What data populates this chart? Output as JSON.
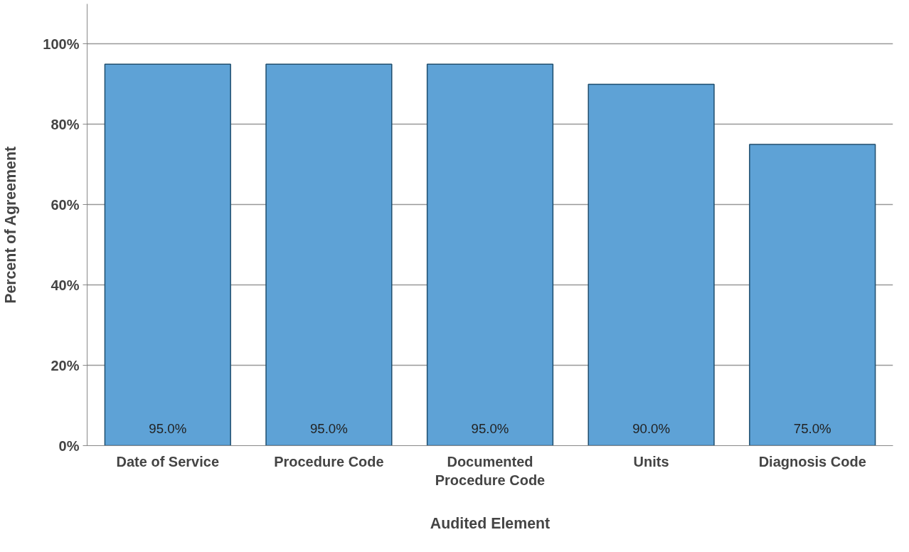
{
  "chart_data": {
    "type": "bar",
    "xlabel": "Audited Element",
    "ylabel": "Percent of Agreement",
    "categories": [
      "Date of Service",
      "Procedure Code",
      "Documented Procedure Code",
      "Units",
      "Diagnosis Code"
    ],
    "values": [
      95,
      95,
      95,
      90,
      75
    ],
    "value_labels": [
      "95.0%",
      "95.0%",
      "95.0%",
      "90.0%",
      "75.0%"
    ],
    "color": "#5ea2d6",
    "ylim": [
      0,
      110
    ],
    "yticks": [
      {
        "value": 0,
        "label": "0%"
      },
      {
        "value": 20,
        "label": "20%"
      },
      {
        "value": 40,
        "label": "40%"
      },
      {
        "value": 60,
        "label": "60%"
      },
      {
        "value": 80,
        "label": "80%"
      },
      {
        "value": 100,
        "label": "100%"
      }
    ],
    "grid": "y"
  }
}
